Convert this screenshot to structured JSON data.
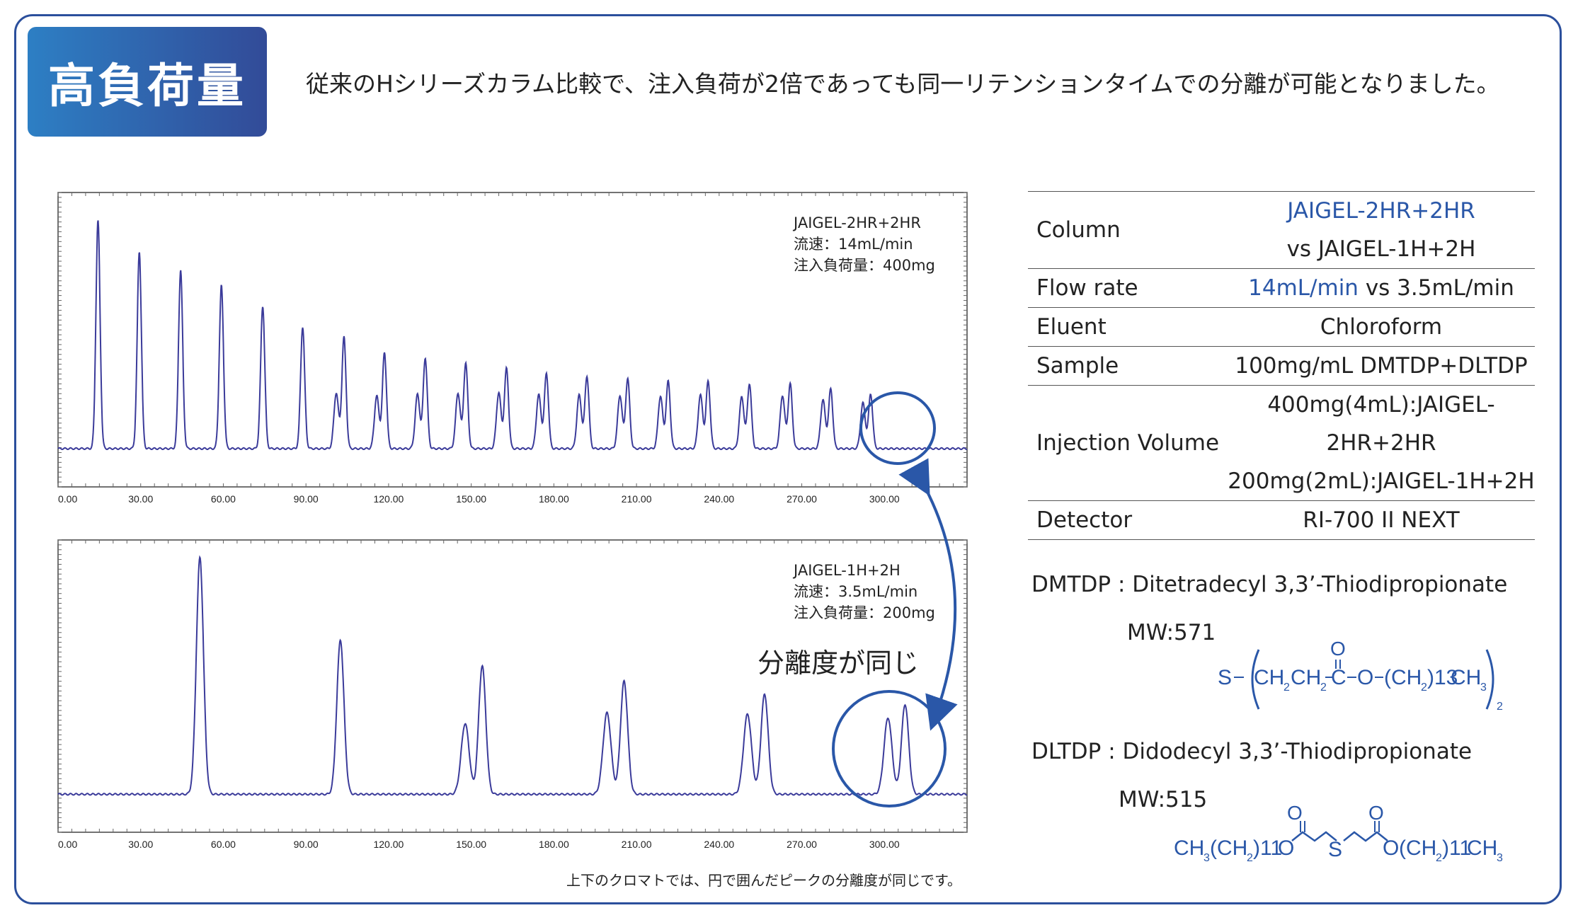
{
  "header": {
    "badge": "高負荷量",
    "headline": "従来のHシリーズカラム比較で、注入負荷が2倍であっても同一リテンションタイムでの分離が可能となりました。"
  },
  "chart_data": [
    {
      "type": "line",
      "title": "",
      "legend": [
        "JAIGEL-2HR+2HR",
        "流速：14mL/min",
        "注入負荷量：400mg"
      ],
      "x_ticks": [
        "0.00",
        "30.00",
        "60.00",
        "90.00",
        "120.00",
        "150.00",
        "180.00",
        "210.00",
        "240.00",
        "270.00",
        "300.00"
      ],
      "xlim": [
        0,
        330
      ],
      "series": [
        {
          "peaks_x": [
            14.5,
            29.5,
            44.5,
            59.3,
            74.3,
            88.8,
            103.8,
            118.5,
            133.3,
            148.0,
            162.8,
            177.3,
            192.0,
            206.8,
            221.5,
            236.0,
            251.0,
            265.8,
            280.5,
            295.0
          ],
          "peak_heights": [
            0.88,
            0.76,
            0.69,
            0.63,
            0.55,
            0.47,
            0.43,
            0.37,
            0.35,
            0.33,
            0.31,
            0.29,
            0.28,
            0.27,
            0.26,
            0.26,
            0.25,
            0.25,
            0.23,
            0.21
          ],
          "shoulder_ratio": [
            0,
            0,
            0,
            0,
            0,
            0,
            0.5,
            0.55,
            0.6,
            0.65,
            0.7,
            0.72,
            0.74,
            0.76,
            0.78,
            0.8,
            0.8,
            0.82,
            0.82,
            0.84
          ]
        }
      ]
    },
    {
      "type": "line",
      "title": "",
      "legend": [
        "JAIGEL-1H+2H",
        "流速：3.5mL/min",
        "注入負荷量：200mg"
      ],
      "annotation": "分離度が同じ",
      "x_ticks": [
        "0.00",
        "30.00",
        "60.00",
        "90.00",
        "120.00",
        "150.00",
        "180.00",
        "210.00",
        "240.00",
        "270.00",
        "300.00"
      ],
      "xlim": [
        0,
        330
      ],
      "series": [
        {
          "peaks_x": [
            51.5,
            102.5,
            154.0,
            205.5,
            256.5,
            307.5
          ],
          "peak_heights": [
            0.92,
            0.6,
            0.5,
            0.44,
            0.39,
            0.35
          ],
          "shoulder_ratio": [
            0,
            0,
            0.55,
            0.72,
            0.8,
            0.85
          ]
        }
      ]
    }
  ],
  "spec_table": [
    {
      "key": "Column",
      "values": [
        "JAIGEL-2HR+2HR",
        "vs JAIGEL-1H+2H"
      ]
    },
    {
      "key": "Flow rate",
      "value_blue": "14mL/min",
      "value_rest": " vs 3.5mL/min"
    },
    {
      "key": "Eluent",
      "values": [
        "Chloroform"
      ]
    },
    {
      "key": "Sample",
      "values": [
        "100mg/mL DMTDP+DLTDP"
      ]
    },
    {
      "key": "Injection Volume",
      "values": [
        "400mg(4mL):JAIGEL-2HR+2HR",
        "200mg(2mL):JAIGEL-1H+2H"
      ]
    },
    {
      "key": "Detector",
      "values": [
        "RI-700 II NEXT"
      ]
    }
  ],
  "compounds": [
    {
      "name": "DMTDP : Ditetradecyl 3,3’-Thiodipropionate",
      "mw": "MW:571"
    },
    {
      "name": "DLTDP : Didodecyl 3,3’-Thiodipropionate",
      "mw": "MW:515"
    }
  ],
  "chem": {
    "dmtdp": {
      "o": "O",
      "s": "S",
      "ch2a": "CH",
      "sub2a": "2",
      "ch2b": "CH",
      "sub2b": "2",
      "c": "C",
      "o2": "O",
      "ch2c": "(CH",
      "sub2c": "2",
      "sub13": ")13",
      "ch3": "CH",
      "sub3": "3",
      "sub_outer": "2"
    },
    "dltdp": {
      "left": "CH",
      "left3": "3",
      "left_ch2": "(CH",
      "left2": "2",
      "left11": ")11",
      "o1": "O",
      "o_top1": "O",
      "s": "S",
      "o_top2": "O",
      "o2": "O",
      "right_ch2": "(CH",
      "right2": "2",
      "right11": ")11",
      "right": "CH",
      "right3": "3"
    }
  },
  "footnote": "上下のクロマトでは、円で囲んだピークの分離度が同じです。",
  "colors": {
    "accent": "#2a57a8",
    "trace": "#3b3b9a",
    "frame": "#2b4f9c"
  }
}
